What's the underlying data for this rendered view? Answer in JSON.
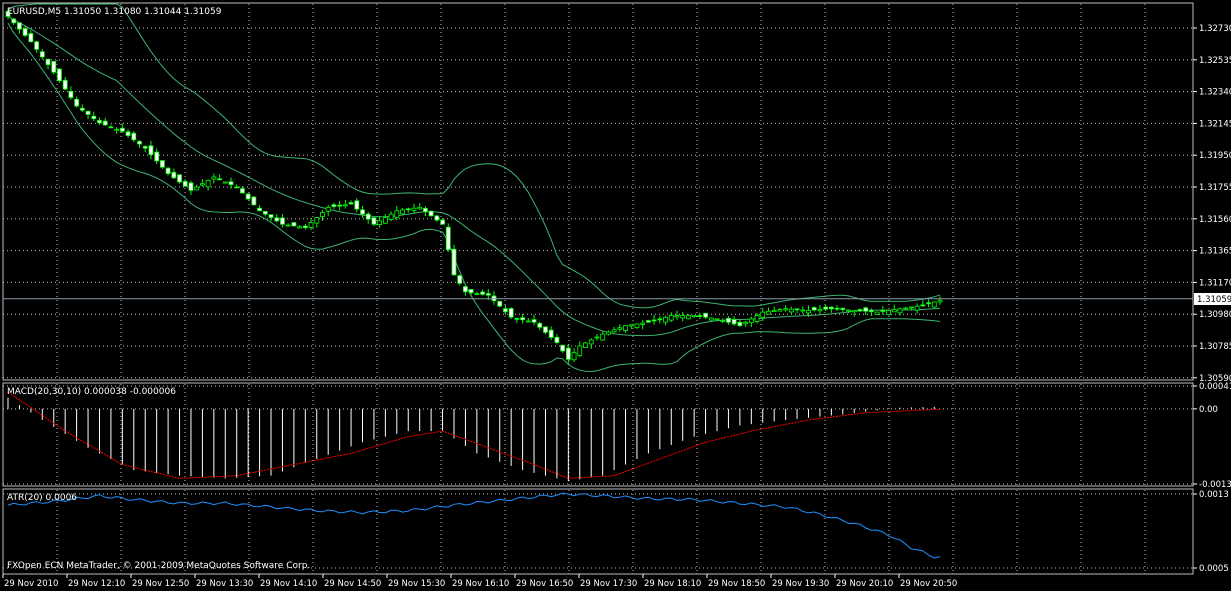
{
  "main": {
    "header": "EURUSD,M5  1.31050 1.31080 1.31044 1.31059",
    "current_price": "1.31059",
    "price_ticks": [
      "1.32730",
      "1.32535",
      "1.32340",
      "1.32145",
      "1.31950",
      "1.31755",
      "1.31560",
      "1.31365",
      "1.31170",
      "1.30980",
      "1.30785",
      "1.30590"
    ]
  },
  "macd": {
    "header": "MACD(20,30,10) 0.000038 -0.000006",
    "ticks": [
      "0.00041",
      "0.00",
      "-0.00135"
    ]
  },
  "atr": {
    "header": "ATR(20) 0.0006",
    "ticks": [
      "0.0013",
      "0.0005"
    ],
    "footer": "FXOpen ECN MetaTrader, © 2001-2009 MetaQuotes Software Corp."
  },
  "time_axis": {
    "labels": [
      "29 Nov 2010",
      "29 Nov 12:10",
      "29 Nov 12:50",
      "29 Nov 13:30",
      "29 Nov 14:10",
      "29 Nov 14:50",
      "29 Nov 15:30",
      "29 Nov 16:10",
      "29 Nov 16:50",
      "29 Nov 17:30",
      "29 Nov 18:10",
      "29 Nov 18:50",
      "29 Nov 19:30",
      "29 Nov 20:10",
      "29 Nov 20:50"
    ]
  },
  "colors": {
    "background": "#000000",
    "grid": "#c0c0c0",
    "candle": "#00ff00",
    "bands": "#3cb371",
    "macd_hist": "#ffffff",
    "macd_signal": "#ff0000",
    "atr_line": "#1e90ff",
    "price_line": "#8899aa"
  },
  "chart_data": [
    {
      "type": "candlestick",
      "symbol": "EURUSD",
      "timeframe": "M5",
      "ylim": [
        1.3059,
        1.3278
      ],
      "grid": true,
      "overlays": [
        "bands (3 lines)"
      ],
      "close_path": [
        [
          0,
          1.3273
        ],
        [
          4,
          1.3258
        ],
        [
          8,
          1.324
        ],
        [
          12,
          1.322
        ],
        [
          16,
          1.321
        ],
        [
          20,
          1.3205
        ],
        [
          24,
          1.3195
        ],
        [
          28,
          1.318
        ],
        [
          32,
          1.317
        ],
        [
          36,
          1.3178
        ],
        [
          40,
          1.3172
        ],
        [
          44,
          1.3158
        ],
        [
          48,
          1.315
        ],
        [
          52,
          1.3148
        ],
        [
          56,
          1.316
        ],
        [
          60,
          1.3162
        ],
        [
          64,
          1.315
        ],
        [
          68,
          1.3158
        ],
        [
          72,
          1.316
        ],
        [
          76,
          1.315
        ],
        [
          78,
          1.312
        ],
        [
          80,
          1.311
        ],
        [
          84,
          1.3108
        ],
        [
          88,
          1.3095
        ],
        [
          92,
          1.3092
        ],
        [
          96,
          1.308
        ],
        [
          98,
          1.307
        ],
        [
          100,
          1.3078
        ],
        [
          104,
          1.3085
        ],
        [
          108,
          1.309
        ],
        [
          112,
          1.3092
        ],
        [
          116,
          1.3096
        ],
        [
          120,
          1.3096
        ],
        [
          124,
          1.3094
        ],
        [
          128,
          1.309
        ],
        [
          132,
          1.3098
        ],
        [
          136,
          1.31
        ],
        [
          140,
          1.3099
        ],
        [
          144,
          1.31
        ],
        [
          148,
          1.3099
        ],
        [
          152,
          1.3098
        ],
        [
          156,
          1.31
        ],
        [
          160,
          1.3102
        ],
        [
          163,
          1.3105
        ]
      ],
      "current": 1.31059
    },
    {
      "type": "bar",
      "name": "MACD(20,30,10)",
      "ylim": [
        -0.00135,
        0.00041
      ],
      "main": 3.8e-05,
      "signal": -6e-06,
      "hist_path": [
        [
          0,
          0.0002
        ],
        [
          6,
          -0.0002
        ],
        [
          14,
          -0.0007
        ],
        [
          22,
          -0.0011
        ],
        [
          30,
          -0.0012
        ],
        [
          38,
          -0.00125
        ],
        [
          46,
          -0.0012
        ],
        [
          54,
          -0.0009
        ],
        [
          62,
          -0.0006
        ],
        [
          70,
          -0.0004
        ],
        [
          76,
          -0.0004
        ],
        [
          82,
          -0.0008
        ],
        [
          90,
          -0.0011
        ],
        [
          98,
          -0.0013
        ],
        [
          104,
          -0.0012
        ],
        [
          112,
          -0.0008
        ],
        [
          120,
          -0.0005
        ],
        [
          128,
          -0.0003
        ],
        [
          136,
          -0.0002
        ],
        [
          146,
          -0.0001
        ],
        [
          156,
          2e-05
        ],
        [
          163,
          3.8e-05
        ]
      ],
      "signal_path": [
        [
          0,
          0.0003
        ],
        [
          10,
          -0.0004
        ],
        [
          20,
          -0.001
        ],
        [
          30,
          -0.00125
        ],
        [
          40,
          -0.0012
        ],
        [
          50,
          -0.001
        ],
        [
          60,
          -0.0008
        ],
        [
          70,
          -0.0005
        ],
        [
          76,
          -0.0004
        ],
        [
          84,
          -0.0007
        ],
        [
          92,
          -0.001
        ],
        [
          98,
          -0.00125
        ],
        [
          106,
          -0.0012
        ],
        [
          114,
          -0.0009
        ],
        [
          122,
          -0.0006
        ],
        [
          130,
          -0.0004
        ],
        [
          140,
          -0.0002
        ],
        [
          150,
          -7e-05
        ],
        [
          163,
          -6e-06
        ]
      ]
    },
    {
      "type": "line",
      "name": "ATR(20)",
      "ylim": [
        0.0005,
        0.0013
      ],
      "current": 0.0006,
      "path": [
        [
          0,
          0.00118
        ],
        [
          8,
          0.00122
        ],
        [
          16,
          0.00128
        ],
        [
          22,
          0.00124
        ],
        [
          30,
          0.0012
        ],
        [
          38,
          0.0012
        ],
        [
          46,
          0.00116
        ],
        [
          54,
          0.00112
        ],
        [
          62,
          0.0011
        ],
        [
          70,
          0.00112
        ],
        [
          78,
          0.00118
        ],
        [
          86,
          0.00123
        ],
        [
          94,
          0.00128
        ],
        [
          98,
          0.0013
        ],
        [
          104,
          0.00128
        ],
        [
          112,
          0.00125
        ],
        [
          120,
          0.00124
        ],
        [
          128,
          0.0012
        ],
        [
          136,
          0.00116
        ],
        [
          142,
          0.00108
        ],
        [
          148,
          0.00098
        ],
        [
          154,
          0.00086
        ],
        [
          158,
          0.00072
        ],
        [
          162,
          0.00062
        ],
        [
          166,
          0.0006
        ]
      ]
    }
  ]
}
